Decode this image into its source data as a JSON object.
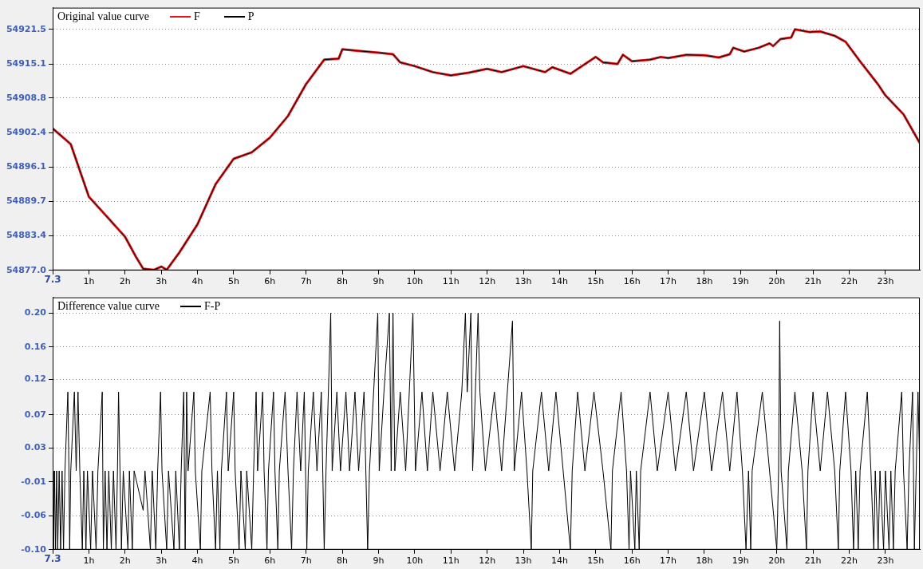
{
  "chart_data": [
    {
      "type": "line",
      "title": "Original value curve",
      "legend": "top left",
      "grid": "y",
      "annotations": [
        "7.3"
      ],
      "xlim": [
        0,
        23.95
      ],
      "xticks": [
        {
          "value": 0,
          "label": null
        },
        {
          "value": 1,
          "label": "1h"
        },
        {
          "value": 2,
          "label": "2h"
        },
        {
          "value": 3,
          "label": "3h"
        },
        {
          "value": 4,
          "label": "4h"
        },
        {
          "value": 5,
          "label": "5h"
        },
        {
          "value": 6,
          "label": "6h"
        },
        {
          "value": 7,
          "label": "7h"
        },
        {
          "value": 8,
          "label": "8h"
        },
        {
          "value": 9,
          "label": "9h"
        },
        {
          "value": 10,
          "label": "10h"
        },
        {
          "value": 11,
          "label": "11h"
        },
        {
          "value": 12,
          "label": "12h"
        },
        {
          "value": 13,
          "label": "13h"
        },
        {
          "value": 14,
          "label": "14h"
        },
        {
          "value": 15,
          "label": "15h"
        },
        {
          "value": 16,
          "label": "16h"
        },
        {
          "value": 17,
          "label": "17h"
        },
        {
          "value": 18,
          "label": "18h"
        },
        {
          "value": 19,
          "label": "19h"
        },
        {
          "value": 20,
          "label": "20h"
        },
        {
          "value": 21,
          "label": "21h"
        },
        {
          "value": 22,
          "label": "22h"
        },
        {
          "value": 23,
          "label": "23h"
        }
      ],
      "ylim": [
        54877.0,
        54925.5
      ],
      "yticks": [
        {
          "value": 54877.0,
          "label": "54877.0"
        },
        54883.4,
        54889.7,
        54896.1,
        54902.4,
        54908.8,
        54915.1,
        54921.5
      ],
      "x": [
        0,
        0.5,
        1,
        1.5,
        2,
        2.3,
        2.5,
        2.8,
        3.0,
        3.15,
        3.5,
        4,
        4.5,
        5,
        5.5,
        6,
        6.5,
        7,
        7.5,
        7.9,
        8,
        8.5,
        9,
        9.4,
        9.6,
        10,
        10.5,
        11,
        11.5,
        12,
        12.4,
        13,
        13.6,
        13.8,
        14.3,
        15,
        15.2,
        15.6,
        15.75,
        16,
        16.5,
        16.8,
        17,
        17.5,
        18,
        18.4,
        18.7,
        18.8,
        19.1,
        19.5,
        19.8,
        19.9,
        20.1,
        20.4,
        20.5,
        20.9,
        21.2,
        21.6,
        21.9,
        22.3,
        22.8,
        23,
        23.5,
        23.95
      ],
      "series": [
        {
          "name": "F",
          "color": "#e8141a",
          "values": [
            54903.2,
            54900.3,
            54890.6,
            54886.9,
            54883.2,
            54879.5,
            54877.3,
            54877.1,
            54877.7,
            54877.1,
            54880.3,
            54885.5,
            54892.9,
            54897.6,
            54898.8,
            54901.5,
            54905.5,
            54911.4,
            54915.9,
            54916.1,
            54917.8,
            54917.5,
            54917.2,
            54916.9,
            54915.4,
            54914.7,
            54913.6,
            54913.0,
            54913.5,
            54914.2,
            54913.6,
            54914.7,
            54913.6,
            54914.5,
            54913.3,
            54916.4,
            54915.4,
            54915.1,
            54916.8,
            54915.6,
            54915.9,
            54916.4,
            54916.2,
            54916.8,
            54916.7,
            54916.3,
            54916.9,
            54918.1,
            54917.4,
            54918.1,
            54918.9,
            54918.4,
            54919.7,
            54920.0,
            54921.5,
            54921.0,
            54921.1,
            54920.3,
            54919.2,
            54915.6,
            54911.3,
            54909.3,
            54905.8,
            54900.5
          ]
        },
        {
          "name": "P",
          "color": "#000000",
          "values": [
            54903.2,
            54900.3,
            54890.6,
            54886.9,
            54883.2,
            54879.5,
            54877.3,
            54877.1,
            54877.7,
            54877.1,
            54880.3,
            54885.5,
            54892.9,
            54897.6,
            54898.8,
            54901.5,
            54905.5,
            54911.4,
            54915.9,
            54916.1,
            54917.8,
            54917.5,
            54917.2,
            54916.9,
            54915.4,
            54914.7,
            54913.6,
            54913.0,
            54913.5,
            54914.2,
            54913.6,
            54914.7,
            54913.6,
            54914.5,
            54913.3,
            54916.4,
            54915.4,
            54915.1,
            54916.8,
            54915.6,
            54915.9,
            54916.4,
            54916.2,
            54916.8,
            54916.7,
            54916.3,
            54916.9,
            54918.1,
            54917.4,
            54918.1,
            54918.9,
            54918.4,
            54919.7,
            54920.0,
            54921.5,
            54921.0,
            54921.1,
            54920.3,
            54919.2,
            54915.6,
            54911.3,
            54909.3,
            54905.8,
            54900.5
          ]
        }
      ]
    },
    {
      "type": "line",
      "title": "Difference value curve",
      "legend": "top left",
      "grid": "y",
      "annotations": [
        "7.3"
      ],
      "xlim": [
        0,
        23.95
      ],
      "xticks": [
        {
          "value": 0,
          "label": null
        },
        {
          "value": 1,
          "label": "1h"
        },
        {
          "value": 2,
          "label": "2h"
        },
        {
          "value": 3,
          "label": "3h"
        },
        {
          "value": 4,
          "label": "4h"
        },
        {
          "value": 5,
          "label": "5h"
        },
        {
          "value": 6,
          "label": "6h"
        },
        {
          "value": 7,
          "label": "7h"
        },
        {
          "value": 8,
          "label": "8h"
        },
        {
          "value": 9,
          "label": "9h"
        },
        {
          "value": 10,
          "label": "10h"
        },
        {
          "value": 11,
          "label": "11h"
        },
        {
          "value": 12,
          "label": "12h"
        },
        {
          "value": 13,
          "label": "13h"
        },
        {
          "value": 14,
          "label": "14h"
        },
        {
          "value": 15,
          "label": "15h"
        },
        {
          "value": 16,
          "label": "16h"
        },
        {
          "value": 17,
          "label": "17h"
        },
        {
          "value": 18,
          "label": "18h"
        },
        {
          "value": 19,
          "label": "19h"
        },
        {
          "value": 20,
          "label": "20h"
        },
        {
          "value": 21,
          "label": "21h"
        },
        {
          "value": 22,
          "label": "22h"
        },
        {
          "value": 23,
          "label": "23h"
        }
      ],
      "ylim": [
        -0.1,
        0.22
      ],
      "yticks": [
        {
          "value": -0.1,
          "label": "-0.10"
        },
        {
          "value": -0.057,
          "label": "-0.06"
        },
        {
          "value": -0.014,
          "label": "-0.01"
        },
        {
          "value": 0.029,
          "label": "0.03"
        },
        {
          "value": 0.071,
          "label": "0.07"
        },
        {
          "value": 0.116,
          "label": "0.12"
        },
        {
          "value": 0.157,
          "label": "0.16"
        },
        {
          "value": 0.2,
          "label": "0.20"
        }
      ],
      "x": [
        0,
        0.02,
        0.05,
        0.08,
        0.11,
        0.14,
        0.18,
        0.22,
        0.26,
        0.3,
        0.34,
        0.42,
        0.45,
        0.47,
        0.5,
        0.6,
        0.65,
        0.7,
        0.75,
        0.82,
        0.86,
        0.92,
        0.96,
        1.05,
        1.1,
        1.2,
        1.25,
        1.37,
        1.4,
        1.45,
        1.5,
        1.55,
        1.62,
        1.68,
        1.75,
        1.79,
        1.82,
        1.86,
        1.9,
        1.95,
        2.08,
        2.12,
        2.2,
        2.25,
        2.5,
        2.55,
        2.7,
        2.75,
        2.85,
        2.9,
        2.98,
        3.02,
        3.15,
        3.2,
        3.35,
        3.4,
        3.5,
        3.55,
        3.62,
        3.66,
        3.7,
        3.74,
        3.9,
        3.94,
        4.08,
        4.12,
        4.35,
        4.4,
        4.5,
        4.55,
        4.62,
        4.66,
        4.8,
        4.85,
        5.0,
        5.04,
        5.15,
        5.2,
        5.32,
        5.36,
        5.5,
        5.55,
        5.62,
        5.66,
        5.8,
        5.84,
        5.92,
        5.96,
        6.1,
        6.14,
        6.22,
        6.26,
        6.42,
        6.5,
        6.6,
        6.65,
        6.75,
        6.85,
        6.95,
        7.02,
        7.06,
        7.2,
        7.3,
        7.42,
        7.5,
        7.55,
        7.68,
        7.72,
        7.85,
        7.95,
        8.1,
        8.2,
        8.35,
        8.45,
        8.6,
        8.7,
        8.75,
        8.98,
        9.02,
        9.15,
        9.3,
        9.35,
        9.4,
        9.45,
        9.6,
        9.75,
        9.95,
        10.02,
        10.2,
        10.35,
        10.5,
        10.7,
        10.9,
        11.1,
        11.3,
        11.4,
        11.45,
        11.55,
        11.6,
        11.75,
        11.8,
        11.95,
        12.2,
        12.4,
        12.7,
        12.75,
        12.95,
        13.1,
        13.22,
        13.26,
        13.5,
        13.7,
        13.9,
        14.1,
        14.3,
        14.35,
        14.5,
        14.7,
        14.95,
        15.2,
        15.42,
        15.46,
        15.7,
        15.85,
        15.92,
        15.96,
        16.08,
        16.12,
        16.2,
        16.24,
        16.5,
        16.7,
        17.0,
        17.2,
        17.5,
        17.7,
        18.0,
        18.2,
        18.5,
        18.7,
        18.9,
        19.05,
        19.15,
        19.22,
        19.28,
        19.32,
        19.6,
        19.8,
        20.0,
        20.05,
        20.08,
        20.12,
        20.28,
        20.32,
        20.5,
        20.7,
        20.82,
        20.86,
        21.0,
        21.2,
        21.4,
        21.6,
        21.7,
        21.74,
        21.9,
        22.05,
        22.12,
        22.18,
        22.25,
        22.3,
        22.5,
        22.6,
        22.68,
        22.72,
        22.8,
        22.85,
        22.95,
        23.0,
        23.1,
        23.15,
        23.22,
        23.27,
        23.45,
        23.5,
        23.6,
        23.65,
        23.75,
        23.8,
        23.85,
        23.9,
        23.95
      ],
      "series": [
        {
          "name": "F-P",
          "color": "#000000",
          "values": [
            0,
            -0.1,
            0,
            -0.1,
            0,
            -0.1,
            0,
            -0.1,
            0,
            -0.1,
            0,
            0.1,
            0,
            -0.1,
            0,
            0.1,
            0,
            0.1,
            0,
            -0.1,
            0,
            -0.1,
            0,
            -0.1,
            0,
            -0.1,
            0,
            0.1,
            -0.1,
            0,
            -0.1,
            0,
            -0.1,
            0,
            -0.1,
            0,
            0.1,
            0,
            -0.1,
            0,
            -0.1,
            0,
            -0.1,
            0,
            -0.05,
            0,
            -0.1,
            0,
            -0.1,
            0,
            0.1,
            0,
            -0.1,
            0,
            -0.1,
            0,
            -0.1,
            0,
            0.1,
            -0.1,
            0.1,
            0,
            0.1,
            0,
            -0.1,
            0,
            0.1,
            0,
            -0.1,
            0,
            -0.1,
            0,
            0.1,
            0,
            0.1,
            0,
            -0.1,
            0,
            -0.1,
            0,
            -0.1,
            0,
            0.1,
            0,
            0.1,
            0,
            -0.1,
            0,
            0.1,
            0,
            -0.1,
            0,
            0.1,
            0,
            -0.1,
            0,
            0.1,
            0,
            0.1,
            -0.1,
            0,
            0.1,
            0,
            0.1,
            -0.1,
            0,
            0.2,
            0,
            0.1,
            0,
            0.1,
            0,
            0.1,
            0,
            0.1,
            -0.1,
            0,
            0.2,
            0,
            0.1,
            0.2,
            0,
            0.2,
            0,
            0.1,
            0,
            0.2,
            0,
            0.1,
            0,
            0.1,
            0,
            0.1,
            0,
            0.1,
            0.2,
            0.1,
            0.2,
            0,
            0.2,
            0.1,
            0,
            0.1,
            0,
            0.19,
            0,
            0.1,
            0,
            -0.1,
            0,
            0.1,
            0,
            0.1,
            0,
            -0.1,
            0,
            0.1,
            0,
            0.1,
            0,
            -0.1,
            0,
            0.1,
            0,
            -0.1,
            0,
            -0.1,
            0,
            -0.1,
            0,
            0.1,
            0,
            0.1,
            0,
            0.1,
            0,
            0.1,
            0,
            0.1,
            0,
            0.1,
            0,
            -0.1,
            0,
            -0.1,
            0,
            0.1,
            0,
            -0.1,
            0,
            0.19,
            0,
            -0.1,
            0,
            0.1,
            0,
            -0.1,
            0,
            0.1,
            0,
            0.1,
            0,
            -0.1,
            0,
            0.1,
            0,
            -0.1,
            0,
            -0.1,
            0,
            0.1,
            0,
            -0.1,
            0,
            -0.1,
            0,
            -0.1,
            0,
            -0.1,
            0,
            -0.1,
            0,
            0.1,
            0,
            -0.1,
            0,
            0.1,
            -0.1,
            0,
            0.1,
            0
          ]
        }
      ]
    }
  ]
}
